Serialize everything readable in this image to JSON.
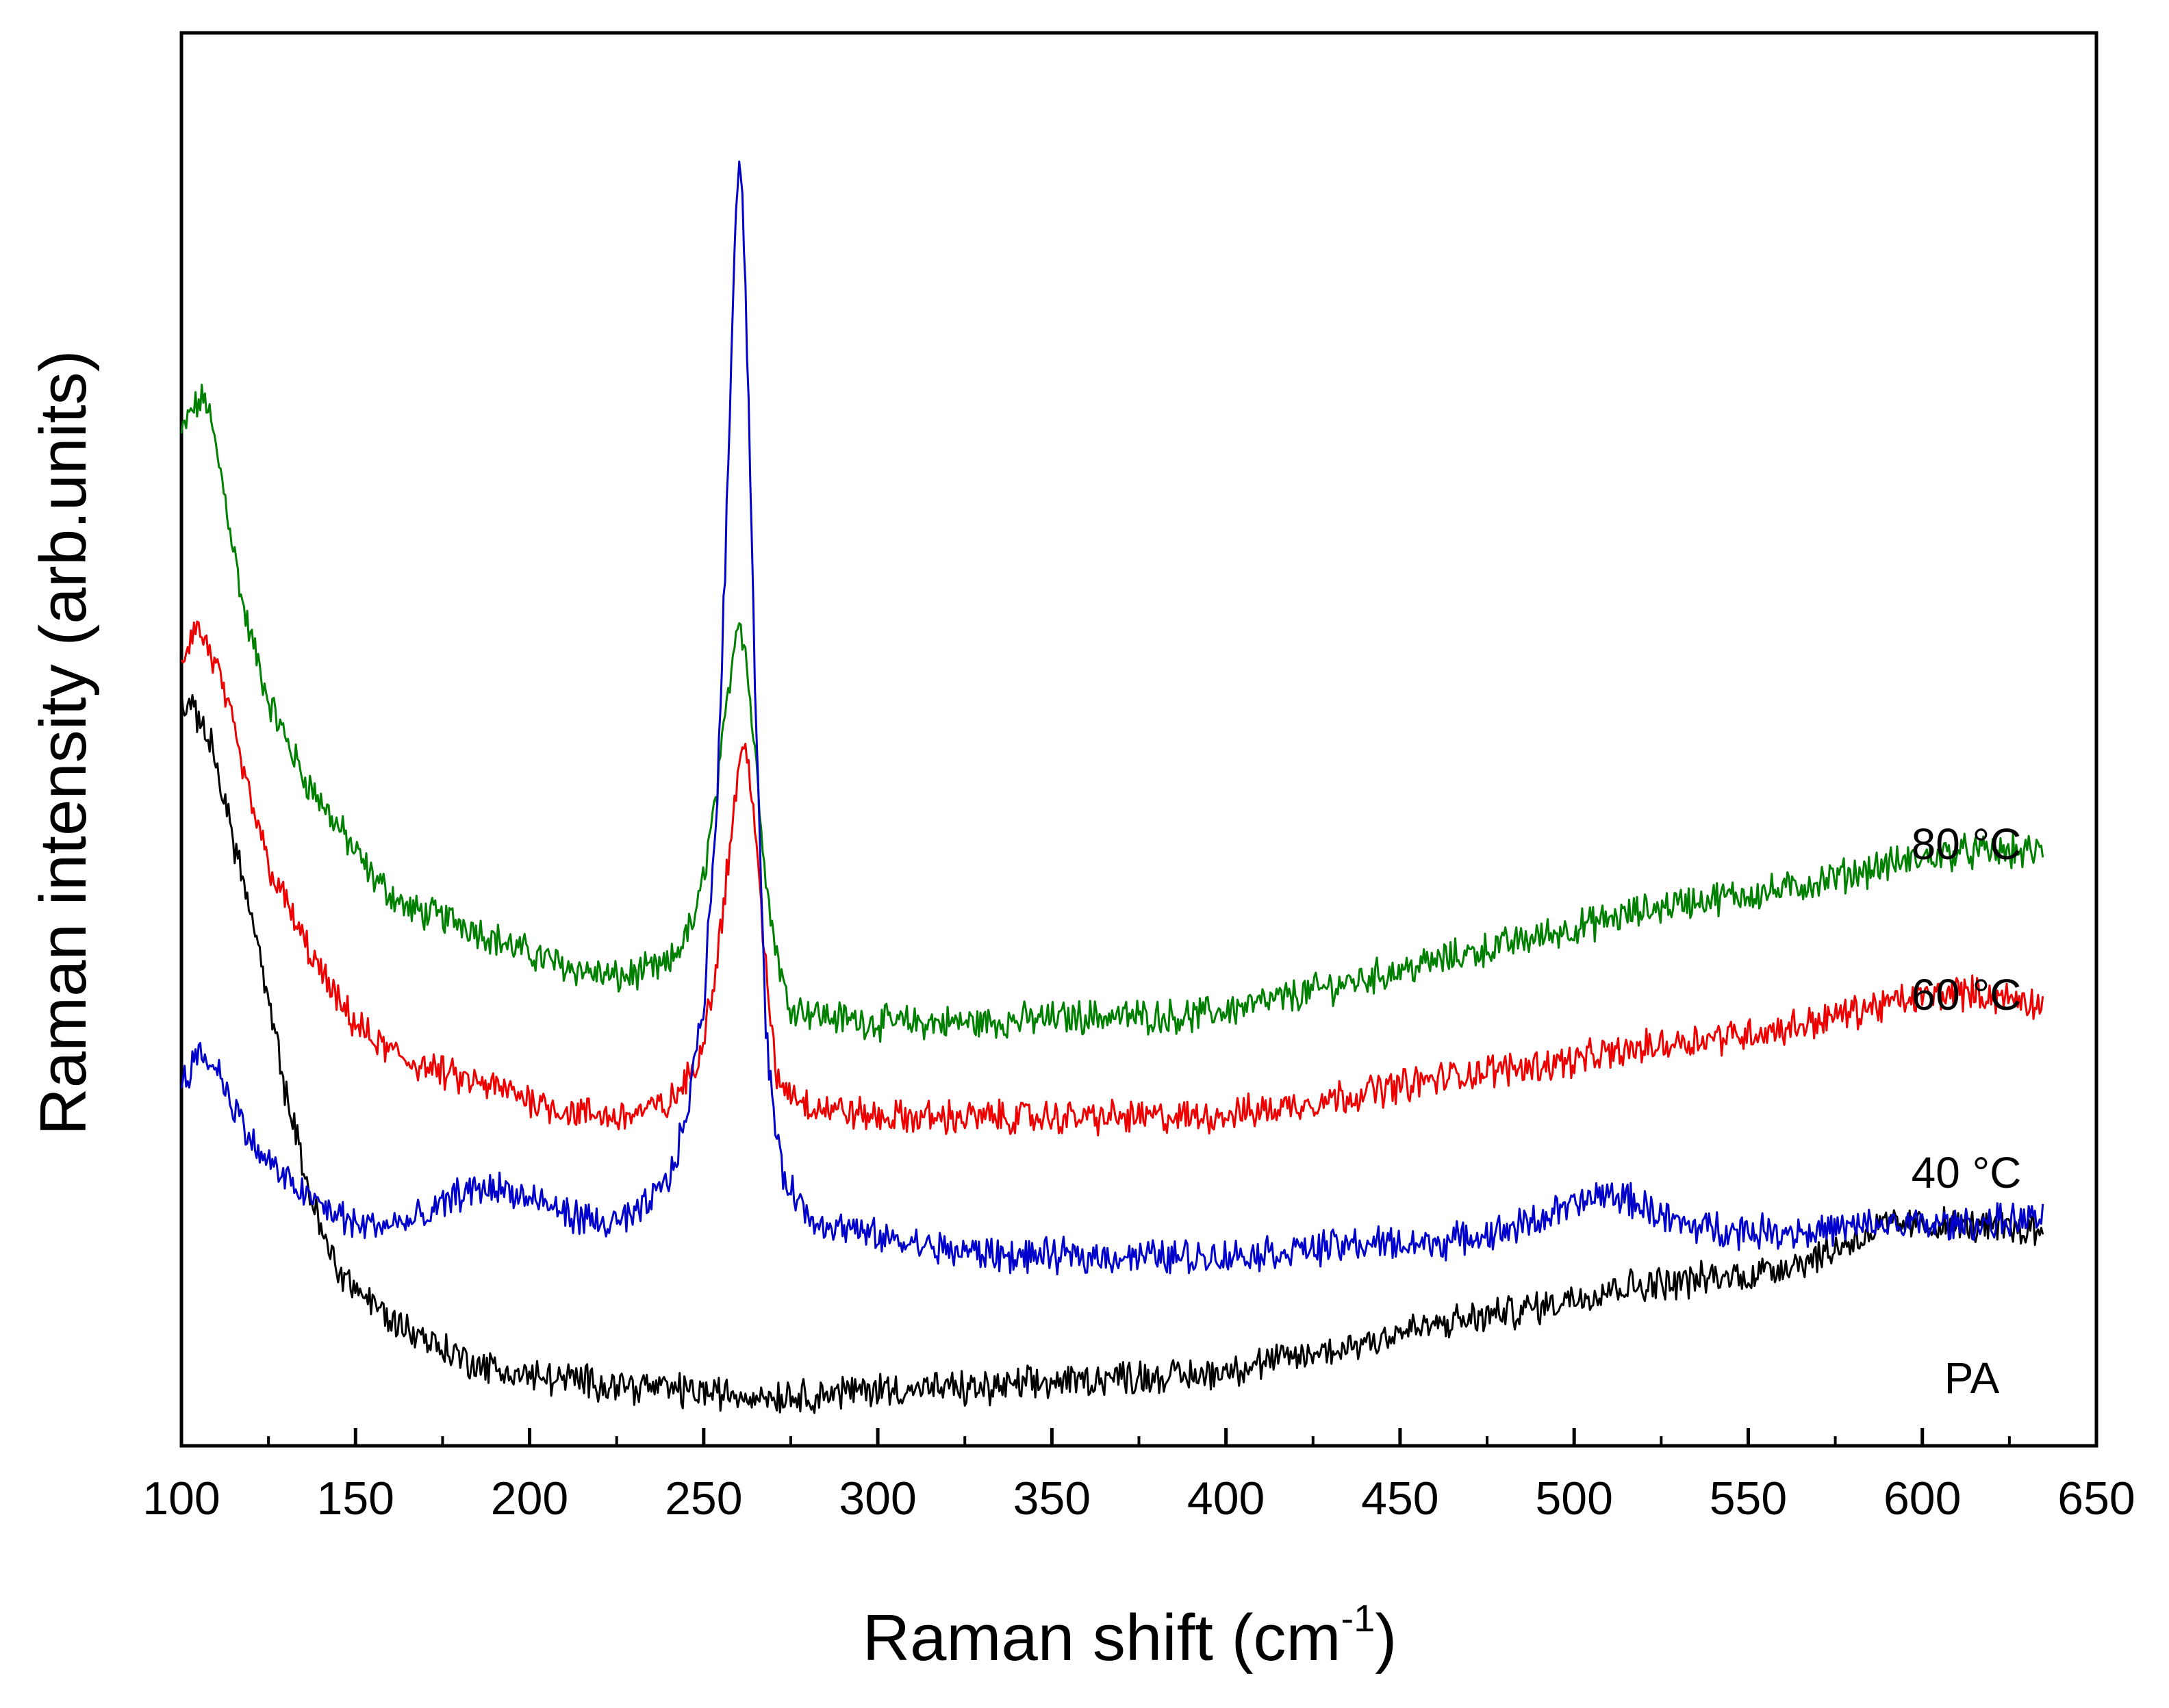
{
  "chart_data": {
    "type": "line",
    "title": "",
    "xlabel": "Raman shift (cm",
    "xlabel_sup": "-1",
    "xlabel_close": ")",
    "ylabel": "Raman intensity (arb.units)",
    "xlim": [
      100,
      650
    ],
    "ylim": [
      0,
      100
    ],
    "x_ticks": [
      "100",
      "150",
      "200",
      "250",
      "300",
      "350",
      "400",
      "450",
      "500",
      "550",
      "600",
      "650"
    ],
    "y_ticks_shown": false,
    "series": [
      {
        "name": "PA",
        "label": "PA",
        "color": "#000000",
        "points": [
          [
            100,
            57
          ],
          [
            103,
            56
          ],
          [
            106,
            55.5
          ],
          [
            110,
            52
          ],
          [
            115,
            46
          ],
          [
            120,
            40
          ],
          [
            125,
            33
          ],
          [
            130,
            26
          ],
          [
            135,
            20
          ],
          [
            140,
            15
          ],
          [
            145,
            12
          ],
          [
            150,
            10.5
          ],
          [
            160,
            8
          ],
          [
            170,
            6.5
          ],
          [
            180,
            5
          ],
          [
            190,
            4
          ],
          [
            200,
            3.5
          ],
          [
            220,
            3
          ],
          [
            240,
            2.5
          ],
          [
            260,
            2
          ],
          [
            280,
            2
          ],
          [
            300,
            2.5
          ],
          [
            330,
            2.5
          ],
          [
            350,
            3
          ],
          [
            370,
            3.5
          ],
          [
            390,
            3.5
          ],
          [
            410,
            4.5
          ],
          [
            430,
            5.5
          ],
          [
            450,
            7
          ],
          [
            470,
            8
          ],
          [
            490,
            9
          ],
          [
            510,
            10.5
          ],
          [
            530,
            11
          ],
          [
            550,
            11.5
          ],
          [
            570,
            13
          ],
          [
            590,
            15.5
          ],
          [
            610,
            15.5
          ],
          [
            635,
            15
          ]
        ]
      },
      {
        "name": "40 °C",
        "label": "40 °C",
        "color": "#0000cc",
        "points": [
          [
            100,
            27
          ],
          [
            105,
            29
          ],
          [
            110,
            28
          ],
          [
            115,
            25
          ],
          [
            120,
            22
          ],
          [
            130,
            19
          ],
          [
            140,
            17
          ],
          [
            150,
            15.5
          ],
          [
            160,
            15.5
          ],
          [
            170,
            16
          ],
          [
            180,
            18
          ],
          [
            190,
            18.5
          ],
          [
            200,
            17.5
          ],
          [
            210,
            16.5
          ],
          [
            220,
            15.5
          ],
          [
            230,
            16
          ],
          [
            240,
            19
          ],
          [
            245,
            24
          ],
          [
            250,
            33
          ],
          [
            254,
            50
          ],
          [
            257,
            75
          ],
          [
            259,
            95
          ],
          [
            260,
            100
          ],
          [
            261,
            98
          ],
          [
            263,
            80
          ],
          [
            265,
            55
          ],
          [
            268,
            30
          ],
          [
            272,
            20
          ],
          [
            280,
            16
          ],
          [
            300,
            14.5
          ],
          [
            320,
            13.5
          ],
          [
            340,
            13
          ],
          [
            360,
            13
          ],
          [
            380,
            13
          ],
          [
            400,
            13
          ],
          [
            420,
            13.5
          ],
          [
            440,
            14
          ],
          [
            460,
            14
          ],
          [
            480,
            15
          ],
          [
            500,
            17
          ],
          [
            510,
            18
          ],
          [
            520,
            17
          ],
          [
            530,
            15.5
          ],
          [
            550,
            15
          ],
          [
            570,
            15
          ],
          [
            590,
            15.5
          ],
          [
            610,
            15.5
          ],
          [
            635,
            16
          ]
        ]
      },
      {
        "name": "60 °C",
        "label": "60 °C",
        "color": "#ee0000",
        "points": [
          [
            100,
            60
          ],
          [
            104,
            63
          ],
          [
            108,
            61
          ],
          [
            112,
            58
          ],
          [
            118,
            51
          ],
          [
            125,
            44
          ],
          [
            135,
            38
          ],
          [
            145,
            33
          ],
          [
            155,
            30
          ],
          [
            165,
            28.5
          ],
          [
            180,
            27
          ],
          [
            195,
            26
          ],
          [
            210,
            24.5
          ],
          [
            225,
            24
          ],
          [
            240,
            25
          ],
          [
            248,
            28
          ],
          [
            253,
            35
          ],
          [
            257,
            44
          ],
          [
            260,
            52
          ],
          [
            262,
            53
          ],
          [
            264,
            50
          ],
          [
            267,
            38
          ],
          [
            271,
            27
          ],
          [
            280,
            25
          ],
          [
            300,
            24
          ],
          [
            330,
            24
          ],
          [
            360,
            24
          ],
          [
            390,
            24
          ],
          [
            410,
            24.5
          ],
          [
            440,
            26
          ],
          [
            470,
            27.5
          ],
          [
            500,
            28.5
          ],
          [
            530,
            30
          ],
          [
            560,
            31
          ],
          [
            590,
            33
          ],
          [
            610,
            34
          ],
          [
            635,
            33
          ]
        ]
      },
      {
        "name": "80 °C",
        "label": "80 °C",
        "color": "#008000",
        "points": [
          [
            100,
            78
          ],
          [
            103,
            80
          ],
          [
            107,
            81
          ],
          [
            112,
            74
          ],
          [
            118,
            64
          ],
          [
            125,
            57
          ],
          [
            135,
            51
          ],
          [
            145,
            47
          ],
          [
            155,
            43
          ],
          [
            165,
            40.5
          ],
          [
            180,
            39.5
          ],
          [
            195,
            37.5
          ],
          [
            210,
            36
          ],
          [
            225,
            35
          ],
          [
            240,
            36
          ],
          [
            248,
            40
          ],
          [
            254,
            50
          ],
          [
            258,
            60
          ],
          [
            260,
            64
          ],
          [
            262,
            61
          ],
          [
            265,
            52
          ],
          [
            269,
            40
          ],
          [
            274,
            33
          ],
          [
            285,
            32
          ],
          [
            300,
            31.5
          ],
          [
            330,
            31.5
          ],
          [
            360,
            32
          ],
          [
            390,
            32
          ],
          [
            410,
            33
          ],
          [
            440,
            35
          ],
          [
            470,
            37
          ],
          [
            500,
            39
          ],
          [
            530,
            41
          ],
          [
            560,
            42
          ],
          [
            590,
            44
          ],
          [
            610,
            45
          ],
          [
            635,
            45
          ]
        ]
      }
    ]
  }
}
